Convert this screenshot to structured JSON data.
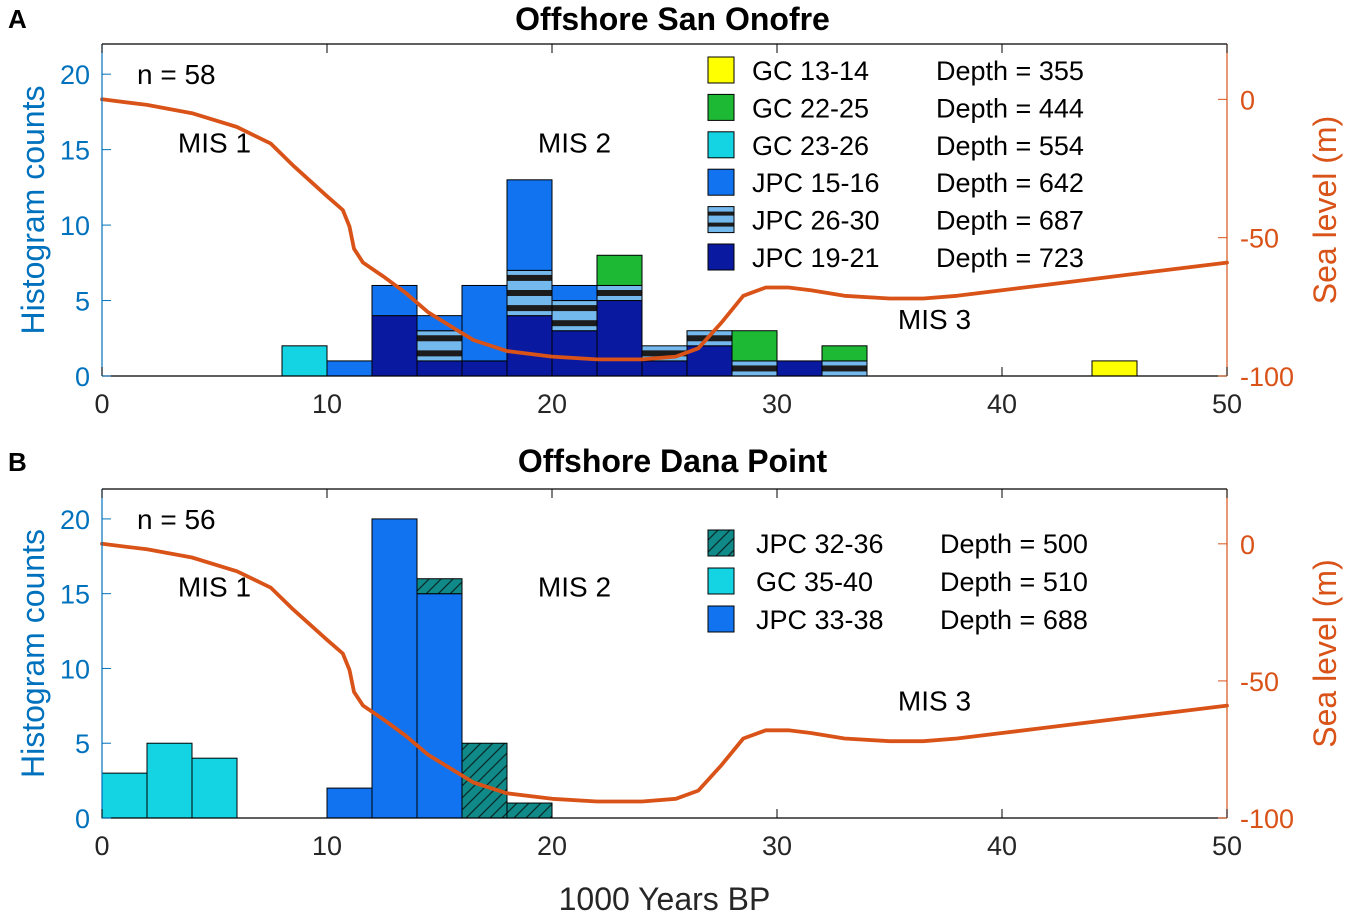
{
  "chart_data": [
    {
      "type": "bar",
      "panel_label": "A",
      "title": "Offshore San Onofre",
      "ylabel": "Histogram counts",
      "y2label": "Sea level (m)",
      "xlabel": "",
      "xlim": [
        0,
        50
      ],
      "ylim": [
        0,
        22
      ],
      "y2lim": [
        -100,
        20
      ],
      "xticks": [
        "0",
        "10",
        "20",
        "30",
        "40",
        "50"
      ],
      "yticks": [
        "0",
        "5",
        "10",
        "15",
        "20"
      ],
      "y2ticks": [
        "-100",
        "-50",
        "0"
      ],
      "bin_width": 2,
      "n_label": "n = 58",
      "annotations": [
        {
          "text": "MIS 1",
          "x": 5,
          "y": 14.8
        },
        {
          "text": "MIS 2",
          "x": 21,
          "y": 14.8
        },
        {
          "text": "MIS 3",
          "x": 37,
          "y": 3.1
        }
      ],
      "legend": {
        "position": "top-right",
        "entries": [
          {
            "name": "GC 13-14",
            "depth_label": "Depth = 355",
            "color": "#ffff00",
            "pattern": "solid"
          },
          {
            "name": "GC 22-25",
            "depth_label": "Depth = 444",
            "color": "#1db934",
            "pattern": "solid"
          },
          {
            "name": "GC 23-26",
            "depth_label": "Depth = 554",
            "color": "#14d3e3",
            "pattern": "solid"
          },
          {
            "name": "JPC 15-16",
            "depth_label": "Depth = 642",
            "color": "#1173f0",
            "pattern": "solid"
          },
          {
            "name": "JPC 26-30",
            "depth_label": "Depth = 687",
            "color": "#1c1c1c",
            "pattern": "stripes"
          },
          {
            "name": "JPC 19-21",
            "depth_label": "Depth = 723",
            "color": "#0a1aa0",
            "pattern": "solid"
          }
        ]
      },
      "series": [
        {
          "name": "JPC 19-21",
          "values": [
            [
              12,
              4
            ],
            [
              14,
              1
            ],
            [
              16,
              1
            ],
            [
              18,
              4
            ],
            [
              20,
              3
            ],
            [
              22,
              5
            ],
            [
              24,
              1
            ],
            [
              26,
              2
            ],
            [
              28,
              0
            ],
            [
              30,
              1
            ],
            [
              32,
              0
            ]
          ]
        },
        {
          "name": "JPC 26-30",
          "values": [
            [
              14,
              2
            ],
            [
              18,
              3
            ],
            [
              20,
              2
            ],
            [
              22,
              1
            ],
            [
              24,
              1
            ],
            [
              26,
              1
            ],
            [
              28,
              1
            ],
            [
              32,
              1
            ]
          ]
        },
        {
          "name": "JPC 15-16",
          "values": [
            [
              10,
              1
            ],
            [
              12,
              2
            ],
            [
              14,
              1
            ],
            [
              16,
              5
            ],
            [
              18,
              6
            ],
            [
              20,
              1
            ]
          ]
        },
        {
          "name": "GC 23-26",
          "values": [
            [
              8,
              2
            ]
          ]
        },
        {
          "name": "GC 22-25",
          "values": [
            [
              22,
              2
            ],
            [
              28,
              2
            ],
            [
              32,
              1
            ]
          ]
        },
        {
          "name": "GC 13-14",
          "values": [
            [
              44,
              1
            ]
          ]
        }
      ],
      "sea_level": {
        "name": "Sea level",
        "color": "#d95319",
        "x": [
          0,
          2,
          4,
          6,
          7.5,
          8.5,
          10,
          10.7,
          11,
          11.2,
          11.6,
          12.5,
          13.5,
          14.5,
          15.5,
          16.5,
          18,
          20,
          22,
          24,
          25.5,
          26.5,
          27.5,
          28.5,
          29.5,
          30.5,
          31.5,
          33,
          35,
          36.5,
          38,
          40,
          42,
          45,
          48,
          50
        ],
        "y": [
          0,
          -2,
          -5,
          -10,
          -16,
          -24,
          -35,
          -40,
          -46,
          -54,
          -59,
          -64,
          -70,
          -77,
          -82,
          -87,
          -91,
          -93,
          -94,
          -94,
          -93,
          -90,
          -81,
          -71,
          -68,
          -68,
          -69,
          -71,
          -72,
          -72,
          -71,
          -69,
          -67,
          -64,
          -61,
          -59
        ]
      }
    },
    {
      "type": "bar",
      "panel_label": "B",
      "title": "Offshore Dana Point",
      "ylabel": "Histogram counts",
      "y2label": "Sea level (m)",
      "xlabel": "1000 Years BP",
      "xlim": [
        0,
        50
      ],
      "ylim": [
        0,
        22
      ],
      "y2lim": [
        -100,
        20
      ],
      "xticks": [
        "0",
        "10",
        "20",
        "30",
        "40",
        "50"
      ],
      "yticks": [
        "0",
        "5",
        "10",
        "15",
        "20"
      ],
      "y2ticks": [
        "-100",
        "-50",
        "0"
      ],
      "bin_width": 2,
      "n_label": "n = 56",
      "annotations": [
        {
          "text": "MIS 1",
          "x": 5,
          "y": 14.8
        },
        {
          "text": "MIS 2",
          "x": 21,
          "y": 14.8
        },
        {
          "text": "MIS 3",
          "x": 37,
          "y": 7.2
        }
      ],
      "legend": {
        "position": "top-right",
        "entries": [
          {
            "name": "JPC 32-36",
            "depth_label": "Depth = 500",
            "color": "#0f8a88",
            "pattern": "hatch"
          },
          {
            "name": "GC 35-40",
            "depth_label": "Depth = 510",
            "color": "#14d3e3",
            "pattern": "solid"
          },
          {
            "name": "JPC 33-38",
            "depth_label": "Depth = 688",
            "color": "#1173f0",
            "pattern": "solid"
          }
        ]
      },
      "series": [
        {
          "name": "GC 35-40",
          "values": [
            [
              0,
              3
            ],
            [
              2,
              5
            ],
            [
              4,
              4
            ]
          ]
        },
        {
          "name": "JPC 33-38",
          "values": [
            [
              10,
              2
            ],
            [
              12,
              20
            ],
            [
              14,
              15
            ]
          ]
        },
        {
          "name": "JPC 32-36",
          "values": [
            [
              14,
              1
            ],
            [
              16,
              5
            ],
            [
              18,
              1
            ]
          ]
        }
      ],
      "sea_level": {
        "name": "Sea level",
        "color": "#d95319",
        "x": [
          0,
          2,
          4,
          6,
          7.5,
          8.5,
          10,
          10.7,
          11,
          11.2,
          11.6,
          12.5,
          13.5,
          14.5,
          15.5,
          16.5,
          18,
          20,
          22,
          24,
          25.5,
          26.5,
          27.5,
          28.5,
          29.5,
          30.5,
          31.5,
          33,
          35,
          36.5,
          38,
          40,
          42,
          45,
          48,
          50
        ],
        "y": [
          0,
          -2,
          -5,
          -10,
          -16,
          -24,
          -35,
          -40,
          -46,
          -54,
          -59,
          -64,
          -70,
          -77,
          -82,
          -87,
          -91,
          -93,
          -94,
          -94,
          -93,
          -90,
          -81,
          -71,
          -68,
          -68,
          -69,
          -71,
          -72,
          -72,
          -71,
          -69,
          -67,
          -64,
          -61,
          -59
        ]
      }
    }
  ]
}
